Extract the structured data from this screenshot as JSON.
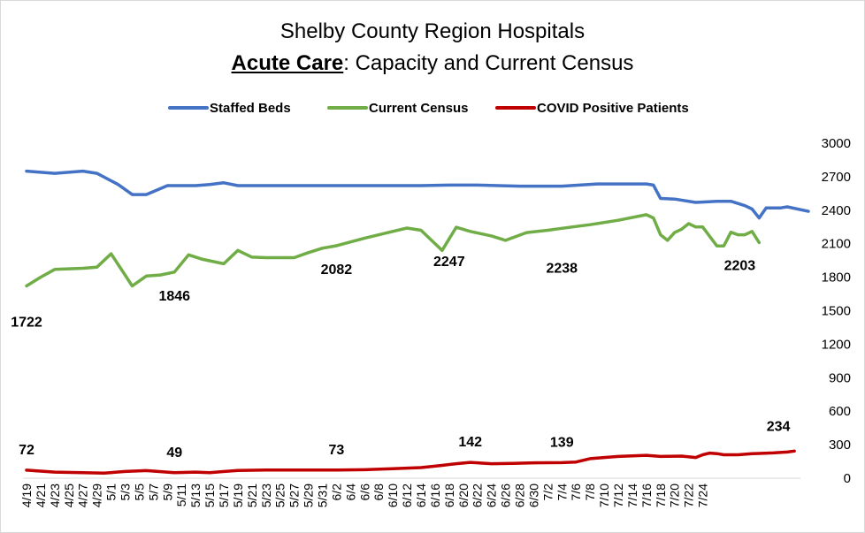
{
  "chart_data": {
    "type": "line",
    "title": "Shelby County Region Hospitals",
    "subtitle_bold": "Acute Care",
    "subtitle_rest": ": Capacity and Current Census",
    "ylim": [
      0,
      3000
    ],
    "yticks": [
      0,
      300,
      600,
      900,
      1200,
      1500,
      1800,
      2100,
      2400,
      2700,
      3000
    ],
    "grid": false,
    "legend_position": "top",
    "x_tick_labels": [
      "4/19",
      "4/21",
      "4/23",
      "4/25",
      "4/27",
      "4/29",
      "5/1",
      "5/3",
      "5/5",
      "5/7",
      "5/9",
      "5/11",
      "5/13",
      "5/15",
      "5/17",
      "5/19",
      "5/21",
      "5/23",
      "5/25",
      "5/27",
      "5/29",
      "5/31",
      "6/2",
      "6/4",
      "6/6",
      "6/8",
      "6/10",
      "6/12",
      "6/14",
      "6/16",
      "6/18",
      "6/20",
      "6/22",
      "6/24",
      "6/26",
      "6/28",
      "6/30",
      "7/2",
      "7/4",
      "7/6",
      "7/8",
      "7/10",
      "7/12",
      "7/14",
      "7/16",
      "7/18",
      "7/20",
      "7/22",
      "7/24"
    ],
    "series": [
      {
        "name": "Staffed Beds",
        "color": "#4472c4",
        "points": [
          [
            0,
            2750
          ],
          [
            4,
            2730
          ],
          [
            8,
            2750
          ],
          [
            10,
            2730
          ],
          [
            13,
            2630
          ],
          [
            15,
            2540
          ],
          [
            17,
            2540
          ],
          [
            20,
            2620
          ],
          [
            24,
            2620
          ],
          [
            26,
            2630
          ],
          [
            28,
            2645
          ],
          [
            30,
            2620
          ],
          [
            56,
            2620
          ],
          [
            60,
            2625
          ],
          [
            64,
            2625
          ],
          [
            70,
            2615
          ],
          [
            76,
            2615
          ],
          [
            81,
            2635
          ],
          [
            85,
            2635
          ],
          [
            88,
            2635
          ],
          [
            89,
            2625
          ],
          [
            90,
            2505
          ],
          [
            92,
            2500
          ],
          [
            95,
            2470
          ],
          [
            98,
            2480
          ],
          [
            100,
            2480
          ],
          [
            102,
            2440
          ],
          [
            103,
            2410
          ],
          [
            104,
            2330
          ],
          [
            105,
            2420
          ],
          [
            107,
            2420
          ],
          [
            108,
            2430
          ],
          [
            111,
            2390
          ]
        ],
        "data_labels": []
      },
      {
        "name": "Current Census",
        "color": "#70ad47",
        "points": [
          [
            0,
            1722
          ],
          [
            2,
            1800
          ],
          [
            4,
            1870
          ],
          [
            8,
            1880
          ],
          [
            10,
            1890
          ],
          [
            12,
            2010
          ],
          [
            15,
            1722
          ],
          [
            17,
            1810
          ],
          [
            19,
            1820
          ],
          [
            21,
            1846
          ],
          [
            23,
            2000
          ],
          [
            25,
            1960
          ],
          [
            28,
            1920
          ],
          [
            30,
            2040
          ],
          [
            32,
            1980
          ],
          [
            34,
            1975
          ],
          [
            38,
            1975
          ],
          [
            40,
            2020
          ],
          [
            42,
            2060
          ],
          [
            44,
            2082
          ],
          [
            48,
            2150
          ],
          [
            52,
            2210
          ],
          [
            54,
            2240
          ],
          [
            56,
            2220
          ],
          [
            59,
            2040
          ],
          [
            61,
            2247
          ],
          [
            63,
            2210
          ],
          [
            66,
            2170
          ],
          [
            68,
            2130
          ],
          [
            71,
            2200
          ],
          [
            74,
            2220
          ],
          [
            76,
            2238
          ],
          [
            80,
            2270
          ],
          [
            84,
            2310
          ],
          [
            88,
            2360
          ],
          [
            89,
            2330
          ],
          [
            90,
            2180
          ],
          [
            91,
            2130
          ],
          [
            92,
            2200
          ],
          [
            93,
            2230
          ],
          [
            94,
            2280
          ],
          [
            95,
            2250
          ],
          [
            96,
            2250
          ],
          [
            98,
            2080
          ],
          [
            99,
            2080
          ],
          [
            100,
            2203
          ],
          [
            101,
            2180
          ],
          [
            102,
            2180
          ],
          [
            103,
            2210
          ],
          [
            104,
            2110
          ]
        ],
        "data_labels": [
          {
            "x": 0,
            "text": "1722",
            "value": 1722
          },
          {
            "x": 21,
            "text": "1846",
            "value": 1846
          },
          {
            "x": 44,
            "text": "2082",
            "value": 2082
          },
          {
            "x": 61,
            "text": "2247",
            "value": 2247
          },
          {
            "x": 76,
            "text": "2238",
            "value": 2238
          },
          {
            "x": 100,
            "text": "2203",
            "value": 2203
          }
        ]
      },
      {
        "name": "COVID Positive Patients",
        "color": "#c00000",
        "points": [
          [
            0,
            72
          ],
          [
            4,
            55
          ],
          [
            8,
            50
          ],
          [
            11,
            45
          ],
          [
            14,
            60
          ],
          [
            17,
            68
          ],
          [
            21,
            49
          ],
          [
            24,
            55
          ],
          [
            26,
            50
          ],
          [
            30,
            70
          ],
          [
            34,
            73
          ],
          [
            40,
            74
          ],
          [
            44,
            73
          ],
          [
            48,
            76
          ],
          [
            52,
            85
          ],
          [
            56,
            95
          ],
          [
            59,
            115
          ],
          [
            61,
            130
          ],
          [
            63,
            142
          ],
          [
            66,
            130
          ],
          [
            69,
            132
          ],
          [
            72,
            138
          ],
          [
            76,
            139
          ],
          [
            78,
            145
          ],
          [
            80,
            175
          ],
          [
            84,
            195
          ],
          [
            88,
            205
          ],
          [
            90,
            195
          ],
          [
            93,
            198
          ],
          [
            95,
            185
          ],
          [
            96,
            210
          ],
          [
            97,
            225
          ],
          [
            98,
            220
          ],
          [
            99,
            210
          ],
          [
            101,
            210
          ],
          [
            103,
            220
          ],
          [
            104,
            222
          ],
          [
            106,
            226
          ],
          [
            108,
            234
          ],
          [
            109,
            243
          ]
        ],
        "data_labels": [
          {
            "x": 0,
            "text": "72",
            "value": 72
          },
          {
            "x": 21,
            "text": "49",
            "value": 49
          },
          {
            "x": 44,
            "text": "73",
            "value": 73
          },
          {
            "x": 63,
            "text": "142",
            "value": 142
          },
          {
            "x": 76,
            "text": "139",
            "value": 139
          },
          {
            "x": 108,
            "text": "234",
            "value": 234
          }
        ]
      }
    ]
  }
}
